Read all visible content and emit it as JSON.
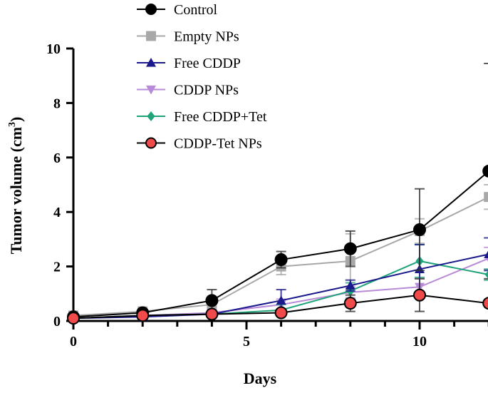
{
  "chart_data": {
    "type": "line",
    "title": "",
    "xlabel": "Days",
    "ylabel": "Tumor volume (cm",
    "ylabel_sup": "3",
    "ylabel_close": ")",
    "xlim": [
      0,
      12.5
    ],
    "ylim": [
      0,
      10
    ],
    "xticks": [
      0,
      5,
      10
    ],
    "yticks": [
      0,
      2,
      4,
      6,
      8,
      10
    ],
    "grid": false,
    "legend_position": "top",
    "x": [
      0,
      2,
      4,
      6,
      8,
      10,
      12
    ],
    "series": [
      {
        "name": "Control",
        "color": "#000000",
        "marker": "circle",
        "fill": "#000000",
        "values": [
          0.15,
          0.3,
          0.75,
          2.25,
          2.65,
          3.35,
          5.5
        ],
        "errors": [
          0.1,
          0.1,
          0.4,
          0.3,
          0.65,
          1.5,
          3.95
        ]
      },
      {
        "name": "Empty NPs",
        "color": "#a8a8a8",
        "marker": "square",
        "fill": "#a8a8a8",
        "values": [
          0.2,
          0.35,
          0.6,
          2.0,
          2.2,
          3.3,
          4.55
        ],
        "errors": [
          0.1,
          0.1,
          0.3,
          0.3,
          1.0,
          0.45,
          0.45
        ]
      },
      {
        "name": "Free CDDP",
        "color": "#1a1a8c",
        "marker": "triangle-up",
        "fill": "#1a1a8c",
        "values": [
          0.1,
          0.15,
          0.25,
          0.75,
          1.3,
          1.9,
          2.45
        ],
        "errors": [
          0.05,
          0.1,
          0.1,
          0.4,
          0.2,
          0.9,
          0.6
        ]
      },
      {
        "name": "CDDP NPs",
        "color": "#b88ad8",
        "marker": "triangle-down",
        "fill": "#b88ad8",
        "values": [
          0.1,
          0.2,
          0.3,
          0.6,
          1.05,
          1.25,
          2.3
        ],
        "errors": [
          0.05,
          0.1,
          0.1,
          0.2,
          0.2,
          0.3,
          0.4
        ]
      },
      {
        "name": "Free CDDP+Tet",
        "color": "#1fa37a",
        "marker": "diamond",
        "fill": "#1fa37a",
        "values": [
          0.1,
          0.2,
          0.25,
          0.4,
          1.1,
          2.2,
          1.7
        ],
        "errors": [
          0.05,
          0.1,
          0.1,
          0.2,
          0.3,
          0.6,
          0.2
        ]
      },
      {
        "name": "CDDP-Tet NPs",
        "color": "#000000",
        "marker": "circle",
        "fill": "#f04a4a",
        "values": [
          0.1,
          0.2,
          0.25,
          0.3,
          0.65,
          0.95,
          0.65
        ],
        "errors": [
          0.05,
          0.1,
          0.1,
          0.1,
          0.3,
          0.6,
          0.05
        ]
      }
    ]
  }
}
